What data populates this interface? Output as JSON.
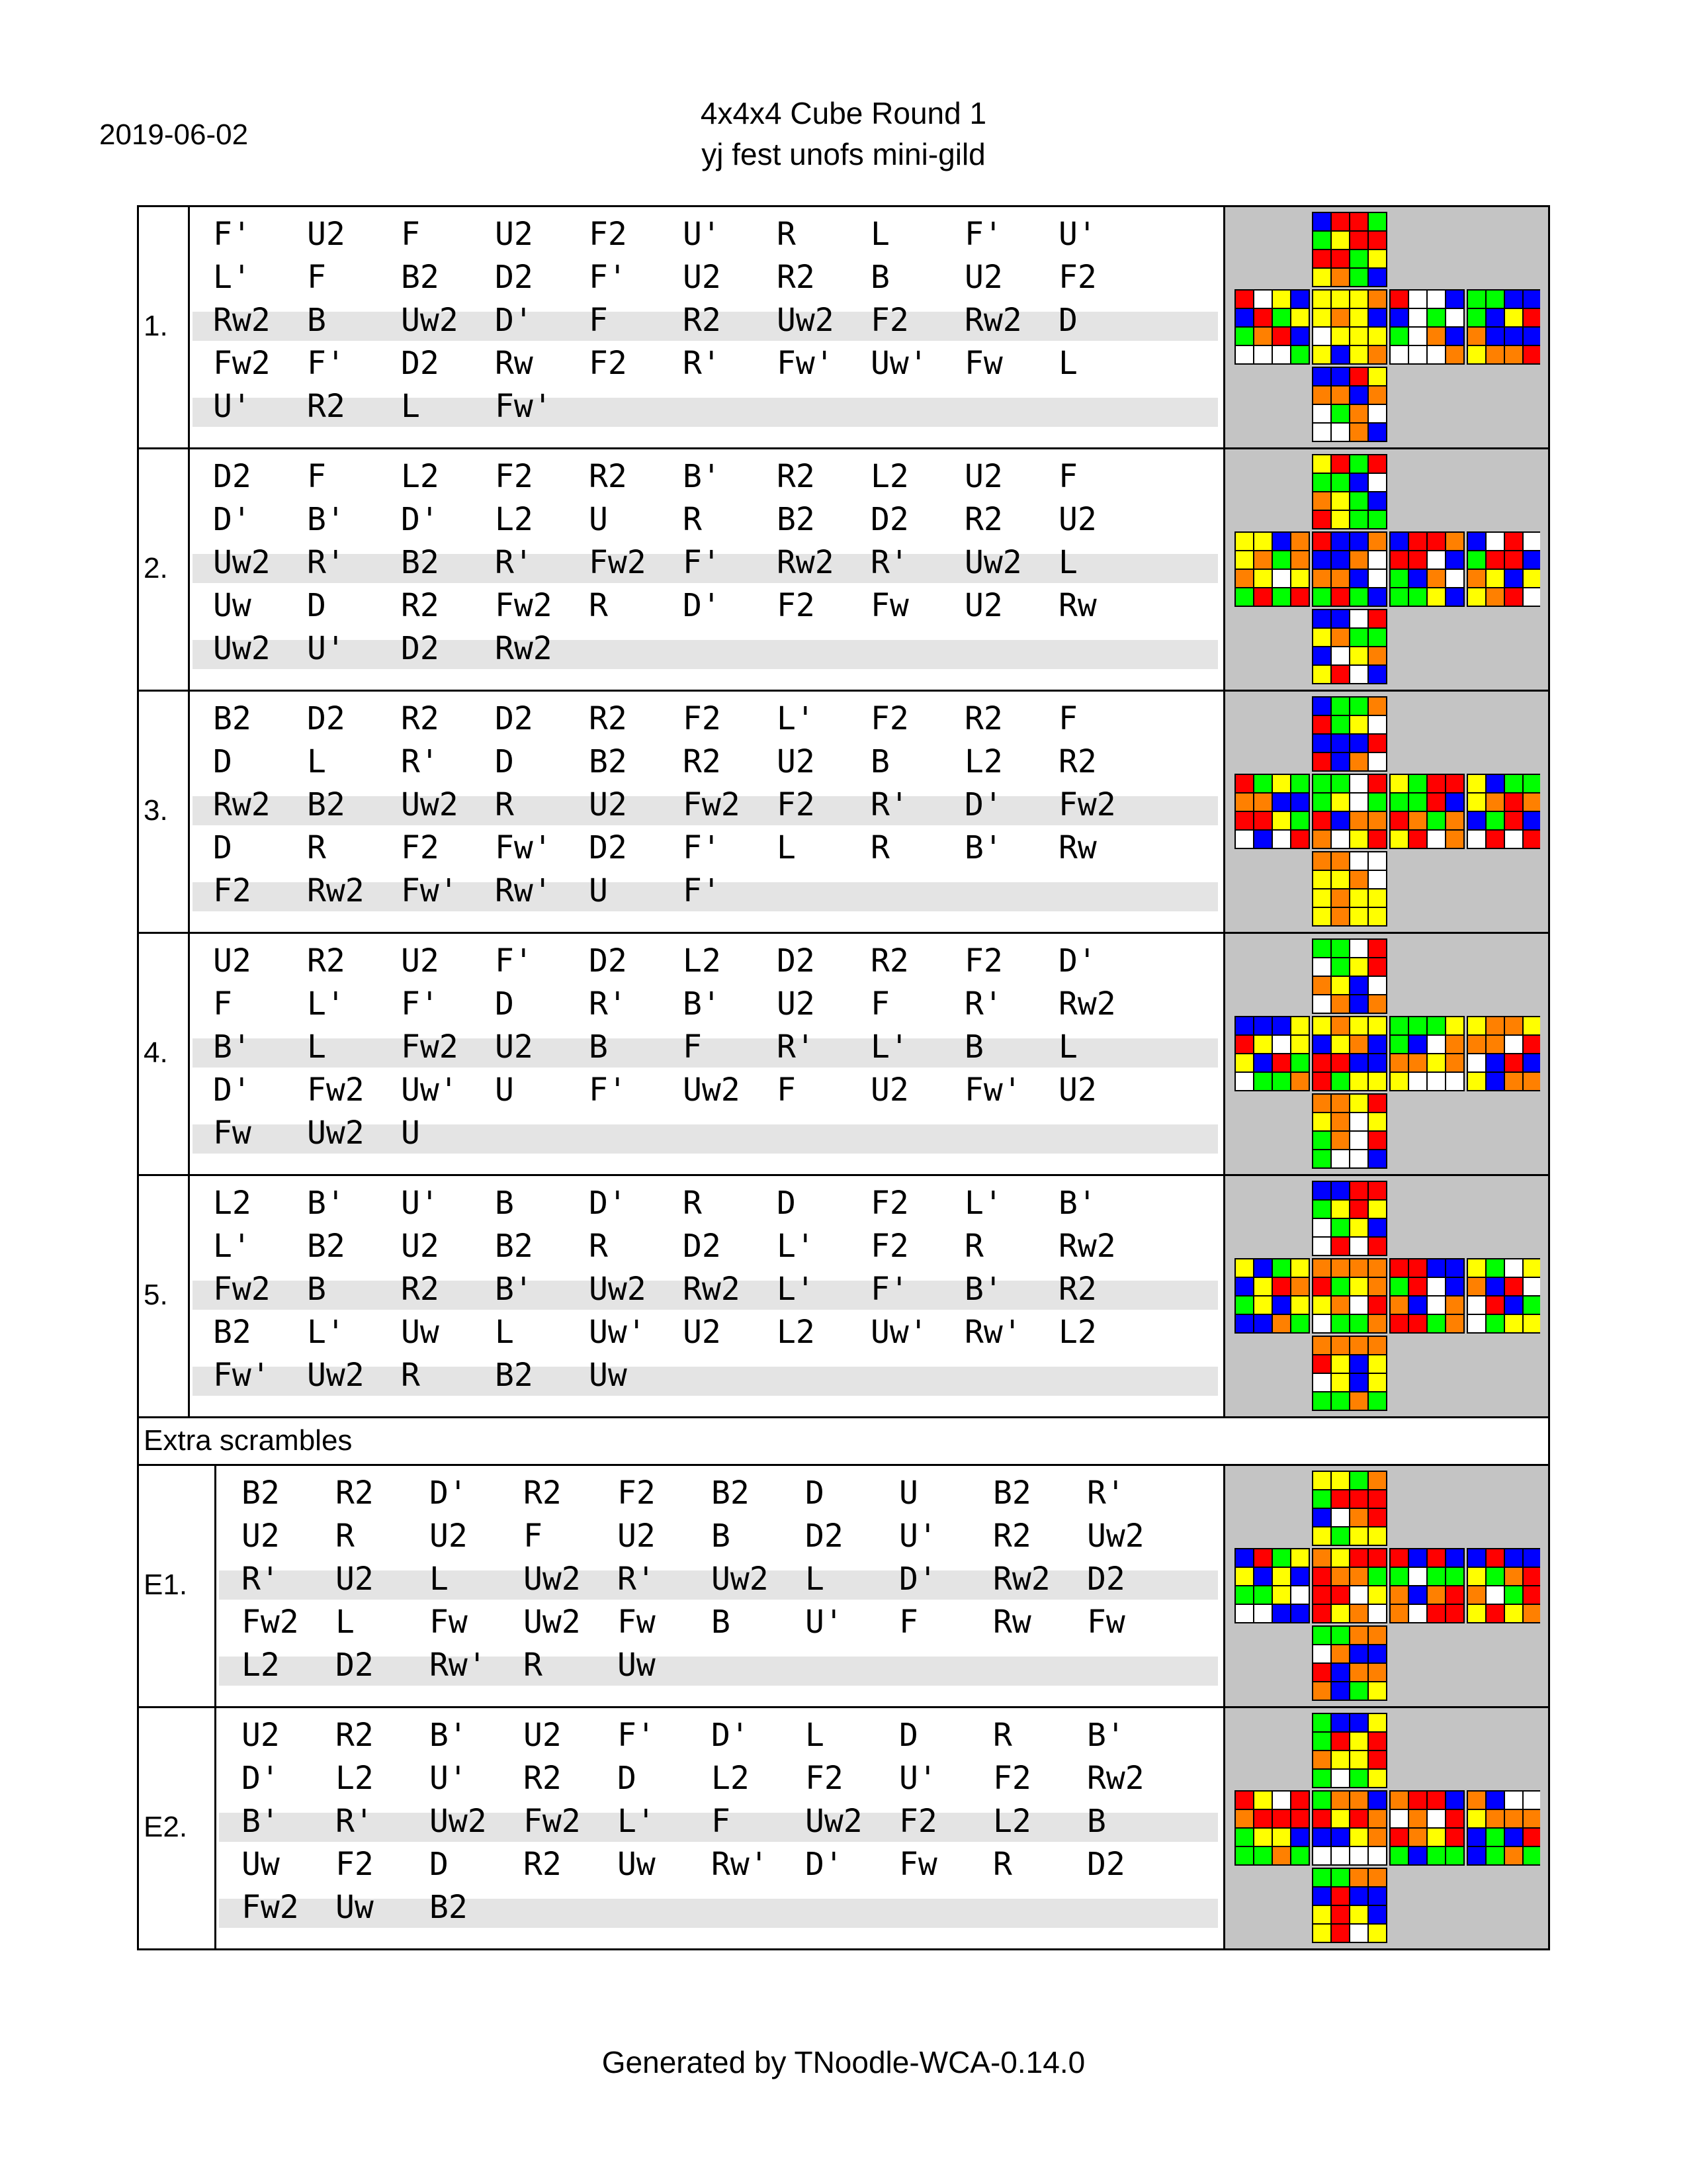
{
  "header": {
    "date": "2019-06-02",
    "title": "4x4x4 Cube Round 1",
    "competition": "yj fest unofs mini-gild"
  },
  "extra_label": "Extra scrambles",
  "footer": "Generated by TNoodle-WCA-0.14.0",
  "colors": {
    "W": "#ffffff",
    "Y": "#ffff00",
    "R": "#ff0000",
    "O": "#ff8000",
    "G": "#00ff00",
    "B": "#0000ff",
    "panel": "#c4c4c4",
    "stripe": "#e4e4e4"
  },
  "scrambles": [
    {
      "label": "1.",
      "moves": [
        [
          "F'",
          "U2",
          "F",
          "U2",
          "F2",
          "U'",
          "R",
          "L",
          "F'",
          "U'"
        ],
        [
          "L'",
          "F",
          "B2",
          "D2",
          "F'",
          "U2",
          "R2",
          "B",
          "U2",
          "F2"
        ],
        [
          "Rw2",
          "B",
          "Uw2",
          "D'",
          "F",
          "R2",
          "Uw2",
          "F2",
          "Rw2",
          "D"
        ],
        [
          "Fw2",
          "F'",
          "D2",
          "Rw",
          "F2",
          "R'",
          "Fw'",
          "Uw'",
          "Fw",
          "L"
        ],
        [
          "U'",
          "R2",
          "L",
          "Fw'"
        ]
      ],
      "faces": {
        "U": [
          "BRRG",
          "GYRR",
          "RRGY",
          "YOGB"
        ],
        "L": [
          "RWYB",
          "BRGY",
          "GORB",
          "WWWG"
        ],
        "F": [
          "YYYO",
          "YOYB",
          "WYYY",
          "YBYO"
        ],
        "R": [
          "RWWB",
          "BWGW",
          "GWOB",
          "WWWO"
        ],
        "B": [
          "GGBB",
          "GBYR",
          "OBBB",
          "YOOR"
        ],
        "D": [
          "BBRY",
          "OOBO",
          "WGOW",
          "WWOB"
        ]
      }
    },
    {
      "label": "2.",
      "moves": [
        [
          "D2",
          "F",
          "L2",
          "F2",
          "R2",
          "B'",
          "R2",
          "L2",
          "U2",
          "F"
        ],
        [
          "D'",
          "B'",
          "D'",
          "L2",
          "U",
          "R",
          "B2",
          "D2",
          "R2",
          "U2"
        ],
        [
          "Uw2",
          "R'",
          "B2",
          "R'",
          "Fw2",
          "F'",
          "Rw2",
          "R'",
          "Uw2",
          "L"
        ],
        [
          "Uw",
          "D",
          "R2",
          "Fw2",
          "R",
          "D'",
          "F2",
          "Fw",
          "U2",
          "Rw"
        ],
        [
          "Uw2",
          "U'",
          "D2",
          "Rw2"
        ]
      ],
      "faces": {
        "U": [
          "YRGR",
          "GGBW",
          "OYGB",
          "RYGG"
        ],
        "L": [
          "YYBO",
          "YOGO",
          "OYWY",
          "GRGR"
        ],
        "F": [
          "RBBO",
          "BBOW",
          "OOBW",
          "GRGB"
        ],
        "R": [
          "BRRO",
          "RRWB",
          "GBOW",
          "GGYB"
        ],
        "B": [
          "BWRW",
          "GRRB",
          "OYBY",
          "YORW"
        ],
        "D": [
          "BBWR",
          "YOGG",
          "BWYO",
          "YRWB"
        ]
      }
    },
    {
      "label": "3.",
      "moves": [
        [
          "B2",
          "D2",
          "R2",
          "D2",
          "R2",
          "F2",
          "L'",
          "F2",
          "R2",
          "F"
        ],
        [
          "D",
          "L",
          "R'",
          "D",
          "B2",
          "R2",
          "U2",
          "B",
          "L2",
          "R2"
        ],
        [
          "Rw2",
          "B2",
          "Uw2",
          "R",
          "U2",
          "Fw2",
          "F2",
          "R'",
          "D'",
          "Fw2"
        ],
        [
          "D",
          "R",
          "F2",
          "Fw'",
          "D2",
          "F'",
          "L",
          "R",
          "B'",
          "Rw"
        ],
        [
          "F2",
          "Rw2",
          "Fw'",
          "Rw'",
          "U",
          "F'"
        ]
      ],
      "faces": {
        "U": [
          "BGGO",
          "RGYW",
          "BBBR",
          "RBOW"
        ],
        "L": [
          "RGYG",
          "OOBB",
          "RRYG",
          "WBWR"
        ],
        "F": [
          "GGWR",
          "GYWG",
          "RBOO",
          "OWYR"
        ],
        "R": [
          "YGRR",
          "GGRB",
          "ROGO",
          "YRWO"
        ],
        "B": [
          "YBGG",
          "YORO",
          "BGRB",
          "WRWR"
        ],
        "D": [
          "OOWW",
          "YYOW",
          "YOYY",
          "YOYY"
        ]
      }
    },
    {
      "label": "4.",
      "moves": [
        [
          "U2",
          "R2",
          "U2",
          "F'",
          "D2",
          "L2",
          "D2",
          "R2",
          "F2",
          "D'"
        ],
        [
          "F",
          "L'",
          "F'",
          "D",
          "R'",
          "B'",
          "U2",
          "F",
          "R'",
          "Rw2"
        ],
        [
          "B'",
          "L",
          "Fw2",
          "U2",
          "B",
          "F",
          "R'",
          "L'",
          "B",
          "L"
        ],
        [
          "D'",
          "Fw2",
          "Uw'",
          "U",
          "F'",
          "Uw2",
          "F",
          "U2",
          "Fw'",
          "U2"
        ],
        [
          "Fw",
          "Uw2",
          "U"
        ]
      ],
      "faces": {
        "U": [
          "GGWR",
          "WGYR",
          "OYBW",
          "WOBO"
        ],
        "L": [
          "BBBY",
          "RYWY",
          "YBRG",
          "WGGO"
        ],
        "F": [
          "YOYY",
          "BYOB",
          "RRBB",
          "RGYY"
        ],
        "R": [
          "GGGY",
          "GBWO",
          "OOYO",
          "YWWW"
        ],
        "B": [
          "YOOY",
          "OOWR",
          "WBRB",
          "YBOO"
        ],
        "D": [
          "OOYR",
          "YOWY",
          "GOWR",
          "GWWB"
        ]
      }
    },
    {
      "label": "5.",
      "moves": [
        [
          "L2",
          "B'",
          "U'",
          "B",
          "D'",
          "R",
          "D",
          "F2",
          "L'",
          "B'"
        ],
        [
          "L'",
          "B2",
          "U2",
          "B2",
          "R",
          "D2",
          "L'",
          "F2",
          "R",
          "Rw2"
        ],
        [
          "Fw2",
          "B",
          "R2",
          "B'",
          "Uw2",
          "Rw2",
          "L'",
          "F'",
          "B'",
          "R2"
        ],
        [
          "B2",
          "L'",
          "Uw",
          "L",
          "Uw'",
          "U2",
          "L2",
          "Uw'",
          "Rw'",
          "L2"
        ],
        [
          "Fw'",
          "Uw2",
          "R",
          "B2",
          "Uw"
        ]
      ],
      "faces": {
        "U": [
          "BBRR",
          "GYRY",
          "WGYB",
          "WRWR"
        ],
        "L": [
          "YBGY",
          "BYRO",
          "GYBY",
          "BBOG"
        ],
        "F": [
          "OOOO",
          "RGYO",
          "YOWR",
          "WGGO"
        ],
        "R": [
          "RRBB",
          "GRWB",
          "OBWO",
          "RRGO"
        ],
        "B": [
          "YGWY",
          "OBRW",
          "WRBG",
          "WGYY"
        ],
        "D": [
          "OOOO",
          "RYBY",
          "WYBY",
          "GGOG"
        ]
      }
    },
    {
      "label": "E1.",
      "moves": [
        [
          "B2",
          "R2",
          "D'",
          "R2",
          "F2",
          "B2",
          "D",
          "U",
          "B2",
          "R'"
        ],
        [
          "U2",
          "R",
          "U2",
          "F",
          "U2",
          "B",
          "D2",
          "U'",
          "R2",
          "Uw2"
        ],
        [
          "R'",
          "U2",
          "L",
          "Uw2",
          "R'",
          "Uw2",
          "L",
          "D'",
          "Rw2",
          "D2"
        ],
        [
          "Fw2",
          "L",
          "Fw",
          "Uw2",
          "Fw",
          "B",
          "U'",
          "F",
          "Rw",
          "Fw"
        ],
        [
          "L2",
          "D2",
          "Rw'",
          "R",
          "Uw"
        ]
      ],
      "faces": {
        "U": [
          "YYGO",
          "GRRR",
          "BWOR",
          "YGYY"
        ],
        "L": [
          "BRGY",
          "YBYB",
          "GGYW",
          "WWBB"
        ],
        "F": [
          "OYRR",
          "ROOG",
          "RRWY",
          "RYOW"
        ],
        "R": [
          "RBRB",
          "GWGG",
          "OBOR",
          "OWRR"
        ],
        "B": [
          "BRBB",
          "YGOR",
          "OWGR",
          "YRYO"
        ],
        "D": [
          "GGOO",
          "WOBB",
          "RBOO",
          "OBGY"
        ]
      }
    },
    {
      "label": "E2.",
      "moves": [
        [
          "U2",
          "R2",
          "B'",
          "U2",
          "F'",
          "D'",
          "L",
          "D",
          "R",
          "B'"
        ],
        [
          "D'",
          "L2",
          "U'",
          "R2",
          "D",
          "L2",
          "F2",
          "U'",
          "F2",
          "Rw2"
        ],
        [
          "B'",
          "R'",
          "Uw2",
          "Fw2",
          "L'",
          "F",
          "Uw2",
          "F2",
          "L2",
          "B"
        ],
        [
          "Uw",
          "F2",
          "D",
          "R2",
          "Uw",
          "Rw'",
          "D'",
          "Fw",
          "R",
          "D2"
        ],
        [
          "Fw2",
          "Uw",
          "B2"
        ]
      ],
      "faces": {
        "U": [
          "GBBY",
          "GRYR",
          "OYYR",
          "GWGY"
        ],
        "L": [
          "RYWR",
          "ORRR",
          "GYYB",
          "GGOG"
        ],
        "F": [
          "GOOB",
          "RYRO",
          "BBYO",
          "WWWW"
        ],
        "R": [
          "ORRB",
          "WOWR",
          "ROYR",
          "GBGG"
        ],
        "B": [
          "OBWW",
          "YOOO",
          "BGBR",
          "BGOG"
        ],
        "D": [
          "GGOO",
          "BRBB",
          "YRYB",
          "YRWY"
        ]
      }
    }
  ]
}
